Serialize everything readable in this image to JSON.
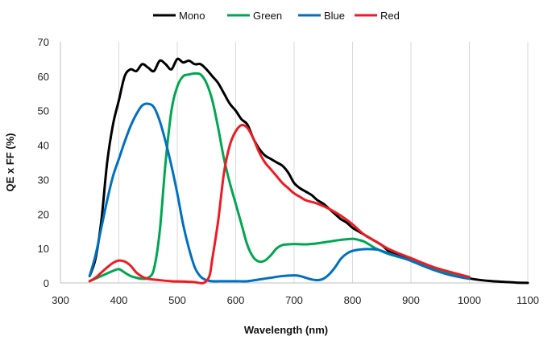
{
  "chart_data": {
    "type": "line",
    "title": "",
    "xlabel": "Wavelength (nm)",
    "ylabel": "QE x FF (%)",
    "xlim": [
      300,
      1100
    ],
    "ylim": [
      0,
      70
    ],
    "xticks": [
      300,
      400,
      500,
      600,
      700,
      800,
      900,
      1000,
      1100
    ],
    "yticks": [
      0,
      10,
      20,
      30,
      40,
      50,
      60,
      70
    ],
    "grid": "vertical",
    "legend": "top-center",
    "series": [
      {
        "name": "Mono",
        "color": "#000000",
        "points": [
          [
            350,
            2
          ],
          [
            360,
            7
          ],
          [
            370,
            18
          ],
          [
            380,
            35
          ],
          [
            390,
            46
          ],
          [
            400,
            53
          ],
          [
            410,
            60
          ],
          [
            420,
            62
          ],
          [
            430,
            61.5
          ],
          [
            440,
            63.5
          ],
          [
            450,
            62.5
          ],
          [
            460,
            61.5
          ],
          [
            470,
            64.5
          ],
          [
            480,
            63.5
          ],
          [
            490,
            62
          ],
          [
            500,
            65
          ],
          [
            510,
            64
          ],
          [
            520,
            64.5
          ],
          [
            530,
            63.5
          ],
          [
            540,
            63.5
          ],
          [
            550,
            62
          ],
          [
            560,
            60
          ],
          [
            570,
            58
          ],
          [
            580,
            55
          ],
          [
            590,
            52
          ],
          [
            600,
            50
          ],
          [
            610,
            47.5
          ],
          [
            620,
            46
          ],
          [
            630,
            42
          ],
          [
            640,
            39
          ],
          [
            650,
            37
          ],
          [
            660,
            36
          ],
          [
            670,
            35
          ],
          [
            680,
            34
          ],
          [
            690,
            32
          ],
          [
            700,
            29
          ],
          [
            710,
            27.5
          ],
          [
            720,
            26.5
          ],
          [
            730,
            25.5
          ],
          [
            740,
            24
          ],
          [
            750,
            23
          ],
          [
            760,
            21.5
          ],
          [
            770,
            20
          ],
          [
            780,
            18.5
          ],
          [
            790,
            17.5
          ],
          [
            800,
            16
          ],
          [
            810,
            15
          ],
          [
            820,
            14
          ],
          [
            830,
            13
          ],
          [
            840,
            12
          ],
          [
            850,
            11
          ],
          [
            860,
            9.5
          ],
          [
            870,
            8.5
          ],
          [
            880,
            8
          ],
          [
            900,
            7
          ],
          [
            920,
            5.5
          ],
          [
            940,
            4
          ],
          [
            960,
            3
          ],
          [
            980,
            2
          ],
          [
            1000,
            1.3
          ],
          [
            1020,
            0.8
          ],
          [
            1040,
            0.5
          ],
          [
            1060,
            0.3
          ],
          [
            1080,
            0.1
          ],
          [
            1100,
            0
          ]
        ]
      },
      {
        "name": "Green",
        "color": "#00a651",
        "points": [
          [
            350,
            0.5
          ],
          [
            370,
            2
          ],
          [
            390,
            3.5
          ],
          [
            400,
            4
          ],
          [
            410,
            3
          ],
          [
            420,
            2
          ],
          [
            430,
            1.5
          ],
          [
            440,
            1.2
          ],
          [
            450,
            1.5
          ],
          [
            460,
            4
          ],
          [
            470,
            15
          ],
          [
            480,
            35
          ],
          [
            490,
            50
          ],
          [
            500,
            57
          ],
          [
            510,
            60
          ],
          [
            520,
            60.5
          ],
          [
            530,
            60.8
          ],
          [
            540,
            60.5
          ],
          [
            550,
            58
          ],
          [
            560,
            53
          ],
          [
            570,
            45
          ],
          [
            580,
            36
          ],
          [
            590,
            29
          ],
          [
            600,
            23
          ],
          [
            610,
            17
          ],
          [
            620,
            11
          ],
          [
            630,
            7.5
          ],
          [
            640,
            6.2
          ],
          [
            650,
            6.5
          ],
          [
            660,
            8
          ],
          [
            670,
            10
          ],
          [
            680,
            11
          ],
          [
            690,
            11.2
          ],
          [
            700,
            11.3
          ],
          [
            720,
            11.2
          ],
          [
            740,
            11.5
          ],
          [
            760,
            12
          ],
          [
            780,
            12.5
          ],
          [
            800,
            12.8
          ],
          [
            810,
            12.5
          ],
          [
            820,
            12
          ],
          [
            830,
            11
          ],
          [
            840,
            10
          ],
          [
            860,
            8.5
          ],
          [
            880,
            7.5
          ],
          [
            900,
            6.5
          ],
          [
            930,
            4.8
          ],
          [
            960,
            3.2
          ],
          [
            980,
            2.3
          ],
          [
            1000,
            1.7
          ]
        ]
      },
      {
        "name": "Blue",
        "color": "#0070c0",
        "points": [
          [
            350,
            2
          ],
          [
            360,
            8
          ],
          [
            370,
            16
          ],
          [
            380,
            24
          ],
          [
            390,
            31
          ],
          [
            400,
            36
          ],
          [
            410,
            41
          ],
          [
            420,
            45.5
          ],
          [
            430,
            49
          ],
          [
            440,
            51.5
          ],
          [
            450,
            52
          ],
          [
            460,
            51
          ],
          [
            470,
            47
          ],
          [
            480,
            41
          ],
          [
            490,
            34
          ],
          [
            500,
            26
          ],
          [
            510,
            17
          ],
          [
            520,
            10
          ],
          [
            530,
            4.5
          ],
          [
            540,
            1.8
          ],
          [
            550,
            0.8
          ],
          [
            560,
            0.5
          ],
          [
            580,
            0.5
          ],
          [
            600,
            0.5
          ],
          [
            620,
            0.5
          ],
          [
            640,
            1
          ],
          [
            660,
            1.5
          ],
          [
            680,
            2
          ],
          [
            700,
            2.2
          ],
          [
            710,
            2
          ],
          [
            720,
            1.5
          ],
          [
            730,
            1
          ],
          [
            740,
            0.8
          ],
          [
            750,
            1.2
          ],
          [
            760,
            2.5
          ],
          [
            770,
            4.5
          ],
          [
            780,
            7
          ],
          [
            790,
            8.5
          ],
          [
            800,
            9.3
          ],
          [
            820,
            9.8
          ],
          [
            840,
            9.7
          ],
          [
            850,
            9.3
          ],
          [
            860,
            8.7
          ],
          [
            880,
            7.6
          ],
          [
            900,
            6.4
          ],
          [
            920,
            5
          ],
          [
            940,
            3.7
          ],
          [
            960,
            2.6
          ],
          [
            980,
            1.8
          ],
          [
            1000,
            1.2
          ]
        ]
      },
      {
        "name": "Red",
        "color": "#ed1c24",
        "points": [
          [
            350,
            0.5
          ],
          [
            360,
            1.5
          ],
          [
            370,
            3
          ],
          [
            380,
            4.5
          ],
          [
            390,
            5.8
          ],
          [
            400,
            6.5
          ],
          [
            410,
            6.2
          ],
          [
            420,
            5
          ],
          [
            430,
            3
          ],
          [
            440,
            1.8
          ],
          [
            450,
            1.2
          ],
          [
            470,
            0.8
          ],
          [
            490,
            0.5
          ],
          [
            510,
            0.4
          ],
          [
            530,
            0.2
          ],
          [
            545,
            0
          ],
          [
            555,
            2
          ],
          [
            560,
            7
          ],
          [
            570,
            18
          ],
          [
            580,
            32
          ],
          [
            590,
            40
          ],
          [
            600,
            44
          ],
          [
            610,
            45.8
          ],
          [
            620,
            45
          ],
          [
            630,
            42
          ],
          [
            640,
            38
          ],
          [
            650,
            35
          ],
          [
            660,
            33
          ],
          [
            670,
            31
          ],
          [
            680,
            29
          ],
          [
            690,
            27.5
          ],
          [
            700,
            26
          ],
          [
            710,
            25
          ],
          [
            720,
            24
          ],
          [
            740,
            23
          ],
          [
            760,
            21.5
          ],
          [
            780,
            19.5
          ],
          [
            800,
            17
          ],
          [
            820,
            14
          ],
          [
            840,
            12
          ],
          [
            860,
            10
          ],
          [
            880,
            8.5
          ],
          [
            900,
            7.2
          ],
          [
            920,
            5.8
          ],
          [
            940,
            4.5
          ],
          [
            960,
            3.5
          ],
          [
            980,
            2.6
          ],
          [
            1000,
            1.7
          ]
        ]
      }
    ]
  }
}
